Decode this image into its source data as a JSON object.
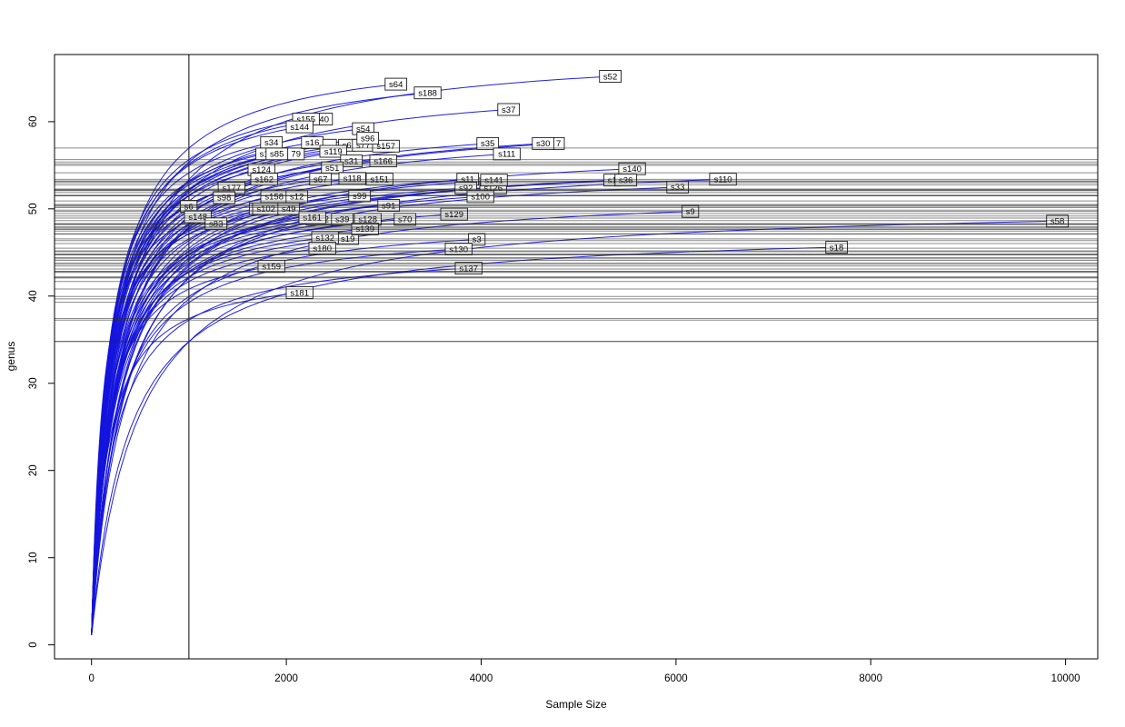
{
  "chart_data": {
    "type": "line",
    "title": "",
    "xlabel": "Sample Size",
    "ylabel": "genus",
    "x_ticks": [
      0,
      2000,
      4000,
      6000,
      8000,
      10000
    ],
    "y_ticks": [
      0,
      10,
      20,
      30,
      40,
      50,
      60
    ],
    "xlim": [
      -380,
      10330
    ],
    "ylim": [
      -1.6,
      67.7
    ],
    "grid": false,
    "legend": "none",
    "curve_color": "#1414dd",
    "reference_line_color": "#2a2a2a",
    "frame_color": "#000000",
    "vline_x": 1000,
    "hlines_rule": "one horizontal reference line per sample at its rarefied richness at the vertical reference sample size (1000)",
    "curves_start": {
      "x": 1,
      "y": 1
    },
    "samples": [
      {
        "label": "s34",
        "end_x": 1847,
        "end_y": 57.6
      },
      {
        "label": "s1",
        "end_x": 1772,
        "end_y": 56.3,
        "fragment": true
      },
      {
        "label": "79",
        "end_x": 2099,
        "end_y": 56.3,
        "fragment": true
      },
      {
        "label": "s85",
        "end_x": 1903,
        "end_y": 56.3
      },
      {
        "label": "s16",
        "end_x": 2267,
        "end_y": 57.6
      },
      {
        "label": "",
        "end_x": 2444,
        "end_y": 57.3,
        "fragment": true
      },
      {
        "label": "s6",
        "end_x": 2621,
        "end_y": 57.3,
        "fragment": true
      },
      {
        "label": "s77",
        "end_x": 2789,
        "end_y": 57.3
      },
      {
        "label": "s157",
        "end_x": 3022,
        "end_y": 57.2
      },
      {
        "label": "s119",
        "end_x": 2481,
        "end_y": 56.6
      },
      {
        "label": "40",
        "end_x": 2388,
        "end_y": 60.3,
        "fragment": true
      },
      {
        "label": "s155",
        "end_x": 2201,
        "end_y": 60.3
      },
      {
        "label": "s144",
        "end_x": 2136,
        "end_y": 59.4
      },
      {
        "label": "s54",
        "end_x": 2789,
        "end_y": 59.2
      },
      {
        "label": "s96",
        "end_x": 2836,
        "end_y": 58.1
      },
      {
        "label": "s52",
        "end_x": 5326,
        "end_y": 65.2
      },
      {
        "label": "s64",
        "end_x": 3125,
        "end_y": 64.3
      },
      {
        "label": "s188",
        "end_x": 3451,
        "end_y": 63.3
      },
      {
        "label": "s37",
        "end_x": 4282,
        "end_y": 61.4
      },
      {
        "label": "s35",
        "end_x": 4067,
        "end_y": 57.5
      },
      {
        "label": "7",
        "end_x": 4795,
        "end_y": 57.5,
        "fragment": true
      },
      {
        "label": "s30",
        "end_x": 4636,
        "end_y": 57.5
      },
      {
        "label": "s111",
        "end_x": 4263,
        "end_y": 56.3
      },
      {
        "label": "s31",
        "end_x": 2668,
        "end_y": 55.5
      },
      {
        "label": "s166",
        "end_x": 2994,
        "end_y": 55.5
      },
      {
        "label": "s51",
        "end_x": 2472,
        "end_y": 54.7
      },
      {
        "label": "s124",
        "end_x": 1744,
        "end_y": 54.5
      },
      {
        "label": "s140",
        "end_x": 5550,
        "end_y": 54.6
      },
      {
        "label": "s1",
        "end_x": 5345,
        "end_y": 53.3,
        "fragment": true
      },
      {
        "label": "s36",
        "end_x": 5485,
        "end_y": 53.3
      },
      {
        "label": "s110",
        "end_x": 6483,
        "end_y": 53.4
      },
      {
        "label": "s11",
        "end_x": 3862,
        "end_y": 53.4
      },
      {
        "label": "s92",
        "end_x": 3843,
        "end_y": 52.4
      },
      {
        "label": "s126",
        "end_x": 4123,
        "end_y": 52.4
      },
      {
        "label": "s141",
        "end_x": 4132,
        "end_y": 53.3
      },
      {
        "label": "s162",
        "end_x": 1772,
        "end_y": 53.4
      },
      {
        "label": "s67",
        "end_x": 2351,
        "end_y": 53.4
      },
      {
        "label": "s118",
        "end_x": 2677,
        "end_y": 53.5
      },
      {
        "label": "s151",
        "end_x": 2957,
        "end_y": 53.4
      },
      {
        "label": "s33",
        "end_x": 6017,
        "end_y": 52.5
      },
      {
        "label": "s177",
        "end_x": 1437,
        "end_y": 52.4
      },
      {
        "label": "s100",
        "end_x": 3993,
        "end_y": 51.4
      },
      {
        "label": "s158",
        "end_x": 1875,
        "end_y": 51.4
      },
      {
        "label": "s98",
        "end_x": 1362,
        "end_y": 51.3
      },
      {
        "label": "s12",
        "end_x": 2108,
        "end_y": 51.4
      },
      {
        "label": "s99",
        "end_x": 2752,
        "end_y": 51.5
      },
      {
        "label": "s6",
        "end_x": 998,
        "end_y": 50.3
      },
      {
        "label": "s91",
        "end_x": 3050,
        "end_y": 50.4
      },
      {
        "label": "s9",
        "end_x": 6148,
        "end_y": 49.7
      },
      {
        "label": "s",
        "end_x": 1679,
        "end_y": 50.0,
        "fragment": true
      },
      {
        "label": "s102",
        "end_x": 1791,
        "end_y": 50.0
      },
      {
        "label": "s49",
        "end_x": 2024,
        "end_y": 50.0
      },
      {
        "label": "s148",
        "end_x": 1091,
        "end_y": 49.1
      },
      {
        "label": "s129",
        "end_x": 3722,
        "end_y": 49.4
      },
      {
        "label": "s122",
        "end_x": 2341,
        "end_y": 48.8
      },
      {
        "label": "s161",
        "end_x": 2267,
        "end_y": 49.0
      },
      {
        "label": "s39",
        "end_x": 2575,
        "end_y": 48.8
      },
      {
        "label": "s128",
        "end_x": 2836,
        "end_y": 48.8
      },
      {
        "label": "s70",
        "end_x": 3218,
        "end_y": 48.8
      },
      {
        "label": "s58",
        "end_x": 9916,
        "end_y": 48.6
      },
      {
        "label": "s19",
        "end_x": 2631,
        "end_y": 46.6
      },
      {
        "label": "s139",
        "end_x": 2808,
        "end_y": 47.7
      },
      {
        "label": "s132",
        "end_x": 2397,
        "end_y": 46.7
      },
      {
        "label": "s3",
        "end_x": 3955,
        "end_y": 46.5
      },
      {
        "label": "s180",
        "end_x": 2369,
        "end_y": 45.5
      },
      {
        "label": "s130",
        "end_x": 3769,
        "end_y": 45.4
      },
      {
        "label": "s18",
        "end_x": 7649,
        "end_y": 45.6
      },
      {
        "label": "s137",
        "end_x": 3871,
        "end_y": 43.2
      },
      {
        "label": "s159",
        "end_x": 1847,
        "end_y": 43.4
      },
      {
        "label": "s181",
        "end_x": 2136,
        "end_y": 40.4
      },
      {
        "label": "s83",
        "end_x": 1278,
        "end_y": 48.3
      }
    ]
  }
}
